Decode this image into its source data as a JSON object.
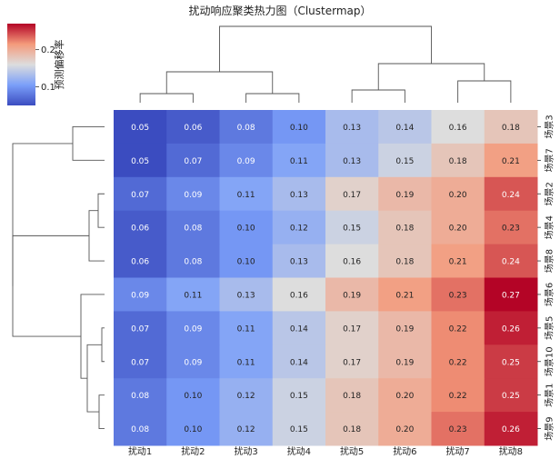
{
  "chart_data": {
    "type": "heatmap",
    "title": "扰动响应聚类热力图（Clustermap）",
    "columns": [
      "扰动1",
      "扰动2",
      "扰动3",
      "扰动4",
      "扰动5",
      "扰动6",
      "扰动7",
      "扰动8"
    ],
    "rows": [
      "场景3",
      "场景7",
      "场景2",
      "场景4",
      "场景8",
      "场景6",
      "场景5",
      "场景10",
      "场景1",
      "场景9"
    ],
    "values": [
      [
        0.05,
        0.06,
        0.08,
        0.1,
        0.13,
        0.14,
        0.16,
        0.18
      ],
      [
        0.05,
        0.07,
        0.09,
        0.11,
        0.13,
        0.15,
        0.18,
        0.21
      ],
      [
        0.07,
        0.09,
        0.11,
        0.13,
        0.17,
        0.19,
        0.2,
        0.24
      ],
      [
        0.06,
        0.08,
        0.1,
        0.12,
        0.15,
        0.18,
        0.2,
        0.23
      ],
      [
        0.06,
        0.08,
        0.1,
        0.13,
        0.16,
        0.18,
        0.21,
        0.24
      ],
      [
        0.09,
        0.11,
        0.13,
        0.16,
        0.19,
        0.21,
        0.23,
        0.27
      ],
      [
        0.07,
        0.09,
        0.11,
        0.14,
        0.17,
        0.19,
        0.22,
        0.26
      ],
      [
        0.07,
        0.09,
        0.11,
        0.14,
        0.17,
        0.19,
        0.22,
        0.25
      ],
      [
        0.08,
        0.1,
        0.12,
        0.15,
        0.18,
        0.2,
        0.22,
        0.25
      ],
      [
        0.08,
        0.1,
        0.12,
        0.15,
        0.18,
        0.2,
        0.23,
        0.26
      ]
    ],
    "value_format": "0.00",
    "colorbar": {
      "label": "预测偏移率",
      "ticks": [
        0.1,
        0.2
      ],
      "tick_labels": [
        "0.1",
        "0.2"
      ],
      "vmin": 0.05,
      "vmax": 0.27,
      "colormap": "coolwarm"
    },
    "colors": {
      "low": "#3b4cc0",
      "mid": "#dddddd",
      "high": "#b40426",
      "dendrogram": "#555555"
    }
  }
}
